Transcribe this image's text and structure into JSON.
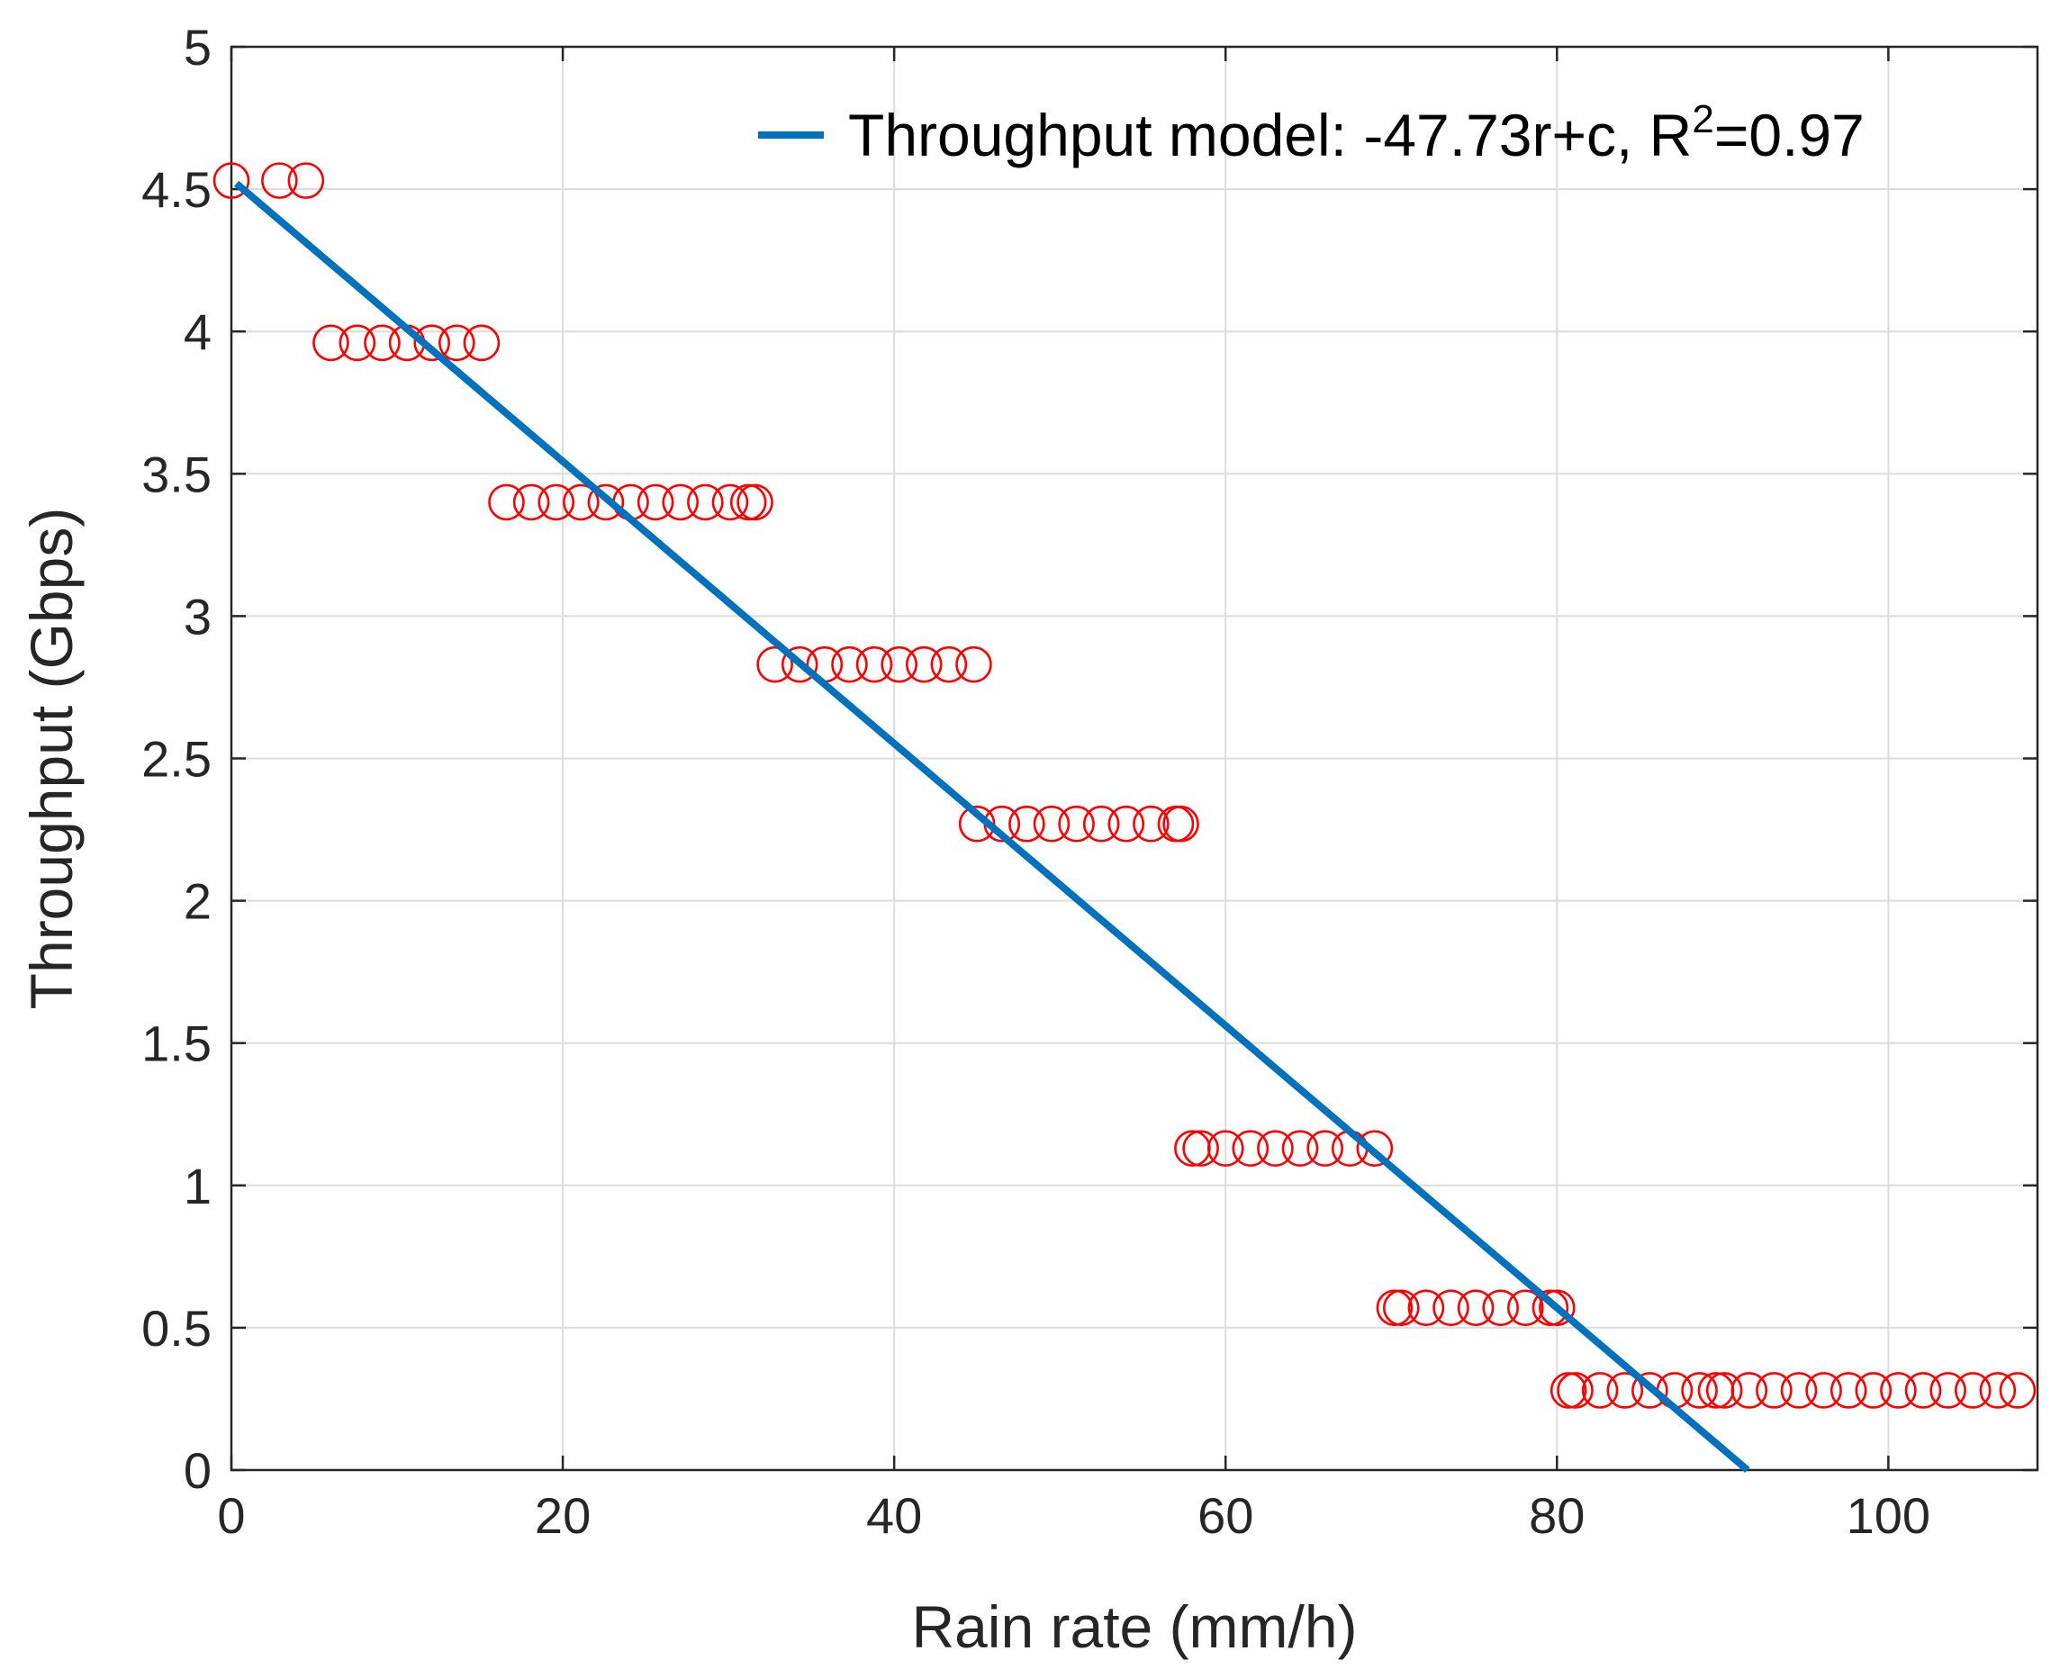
{
  "chart_data": {
    "type": "scatter",
    "xlabel": "Rain rate (mm/h)",
    "ylabel": "Throughput (Gbps)",
    "xlim": [
      0,
      109
    ],
    "ylim": [
      0,
      5
    ],
    "x_ticks": [
      0,
      20,
      40,
      60,
      80,
      100
    ],
    "y_ticks": [
      0,
      0.5,
      1,
      1.5,
      2,
      2.5,
      3,
      3.5,
      4,
      4.5,
      5
    ],
    "x_tick_labels": [
      "0",
      "20",
      "40",
      "60",
      "80",
      "100"
    ],
    "y_tick_labels": [
      "0",
      "0.5",
      "1",
      "1.5",
      "2",
      "2.5",
      "3",
      "3.5",
      "4",
      "4.5",
      "5"
    ],
    "grid": true,
    "legend": {
      "placement": "top-right",
      "entries": [
        {
          "label_main": "Throughput model: -47.73r+c, R",
          "label_sup": "2",
          "label_tail": "=0.97"
        }
      ]
    },
    "series": [
      {
        "type": "scatter",
        "marker": "open-circle",
        "color": "#ff0000",
        "points": [
          [
            0.0,
            4.53
          ],
          [
            2.9,
            4.53
          ],
          [
            4.5,
            4.53
          ],
          [
            6.0,
            3.96
          ],
          [
            7.6,
            3.96
          ],
          [
            9.1,
            3.96
          ],
          [
            10.6,
            3.96
          ],
          [
            12.1,
            3.96
          ],
          [
            13.6,
            3.96
          ],
          [
            15.1,
            3.96
          ],
          [
            16.6,
            3.4
          ],
          [
            18.1,
            3.4
          ],
          [
            19.6,
            3.4
          ],
          [
            21.1,
            3.4
          ],
          [
            22.6,
            3.4
          ],
          [
            24.1,
            3.4
          ],
          [
            25.6,
            3.4
          ],
          [
            27.1,
            3.4
          ],
          [
            28.6,
            3.4
          ],
          [
            30.1,
            3.4
          ],
          [
            31.2,
            3.4
          ],
          [
            31.6,
            3.4
          ],
          [
            32.8,
            2.83
          ],
          [
            34.3,
            2.83
          ],
          [
            35.8,
            2.83
          ],
          [
            37.3,
            2.83
          ],
          [
            38.8,
            2.83
          ],
          [
            40.3,
            2.83
          ],
          [
            41.8,
            2.83
          ],
          [
            43.3,
            2.83
          ],
          [
            44.8,
            2.83
          ],
          [
            45.0,
            2.27
          ],
          [
            46.5,
            2.27
          ],
          [
            48.0,
            2.27
          ],
          [
            49.5,
            2.27
          ],
          [
            51.0,
            2.27
          ],
          [
            52.5,
            2.27
          ],
          [
            54.0,
            2.27
          ],
          [
            55.5,
            2.27
          ],
          [
            57.0,
            2.27
          ],
          [
            57.3,
            2.27
          ],
          [
            58.0,
            1.13
          ],
          [
            58.5,
            1.13
          ],
          [
            60.0,
            1.13
          ],
          [
            61.5,
            1.13
          ],
          [
            63.0,
            1.13
          ],
          [
            64.5,
            1.13
          ],
          [
            66.0,
            1.13
          ],
          [
            67.5,
            1.13
          ],
          [
            69.0,
            1.13
          ],
          [
            70.2,
            0.57
          ],
          [
            70.6,
            0.57
          ],
          [
            72.1,
            0.57
          ],
          [
            73.6,
            0.57
          ],
          [
            75.1,
            0.57
          ],
          [
            76.6,
            0.57
          ],
          [
            78.1,
            0.57
          ],
          [
            79.6,
            0.57
          ],
          [
            80.0,
            0.57
          ],
          [
            80.7,
            0.28
          ],
          [
            81.1,
            0.28
          ],
          [
            82.6,
            0.28
          ],
          [
            84.1,
            0.28
          ],
          [
            85.6,
            0.28
          ],
          [
            87.1,
            0.28
          ],
          [
            88.6,
            0.28
          ],
          [
            89.6,
            0.28
          ],
          [
            90.1,
            0.28
          ],
          [
            91.6,
            0.28
          ],
          [
            93.1,
            0.28
          ],
          [
            94.6,
            0.28
          ],
          [
            96.1,
            0.28
          ],
          [
            97.6,
            0.28
          ],
          [
            99.1,
            0.28
          ],
          [
            100.6,
            0.28
          ],
          [
            102.1,
            0.28
          ],
          [
            103.6,
            0.28
          ],
          [
            105.1,
            0.28
          ],
          [
            106.6,
            0.28
          ],
          [
            107.8,
            0.28
          ]
        ]
      },
      {
        "type": "line",
        "color": "#0072bd",
        "x": [
          0.3,
          91.5
        ],
        "y": [
          4.52,
          0.0
        ]
      }
    ]
  }
}
